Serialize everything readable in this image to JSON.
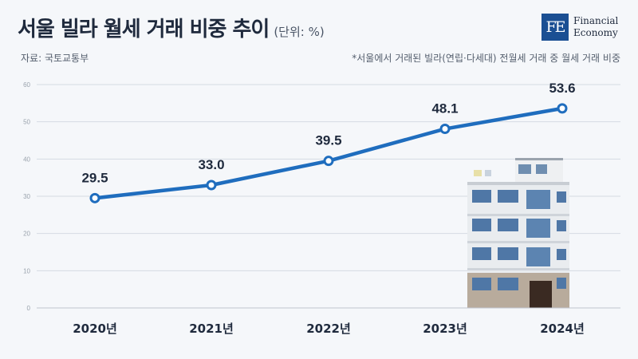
{
  "header": {
    "title": "서울 빌라 월세 거래 비중 추이",
    "unit": "(단위: %)",
    "source": "자료: 국토교통부",
    "note": "*서울에서 거래된 빌라(연립·다세대) 전월세 거래 중 월세 거래 비중"
  },
  "logo": {
    "mark": "FE",
    "line1": "Financial",
    "line2": "Economy"
  },
  "colors": {
    "line": "#1f6dbe",
    "grid": "#d5dbe3",
    "text": "#1f2a3d",
    "logo": "#1b4f93"
  },
  "chart_data": {
    "type": "line",
    "categories": [
      "2020년",
      "2021년",
      "2022년",
      "2023년",
      "2024년"
    ],
    "values": [
      29.5,
      33.0,
      39.5,
      48.1,
      53.6
    ],
    "value_labels": [
      "29.5",
      "33.0",
      "39.5",
      "48.1",
      "53.6"
    ],
    "yticks": [
      0,
      10,
      20,
      30,
      40,
      50,
      60
    ],
    "ylim": [
      0,
      60
    ],
    "grid": true,
    "title": "서울 빌라 월세 거래 비중 추이"
  }
}
